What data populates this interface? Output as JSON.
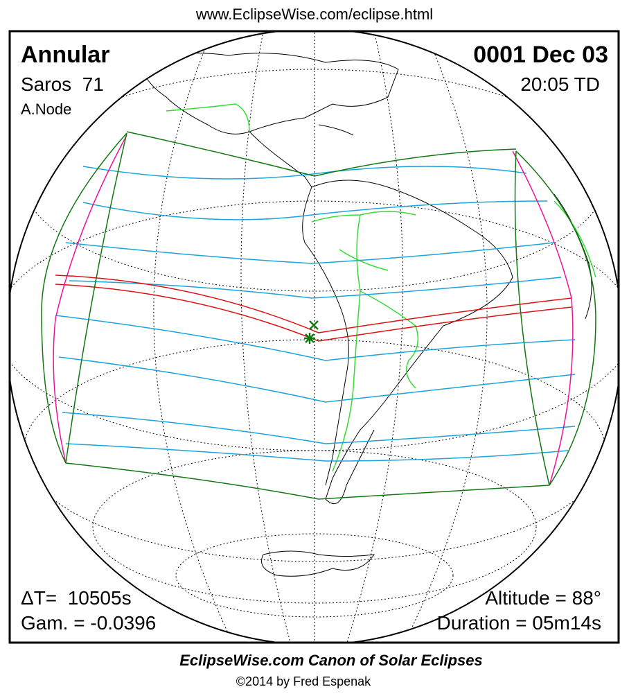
{
  "header": {
    "url": "www.EclipseWise.com/eclipse.html"
  },
  "eclipse": {
    "type": "Annular",
    "saros": "Saros  71",
    "node": "A.Node",
    "date": "0001 Dec 03",
    "time": "20:05 TD",
    "delta_t": "ΔT=  10505s",
    "gamma": "Gam. = -0.0396",
    "altitude": "Altitude = 88°",
    "duration": "Duration = 05m14s"
  },
  "footer": {
    "title": "EclipseWise.com Canon of Solar Eclipses",
    "copyright": "©2014 by Fred Espenak"
  }
}
